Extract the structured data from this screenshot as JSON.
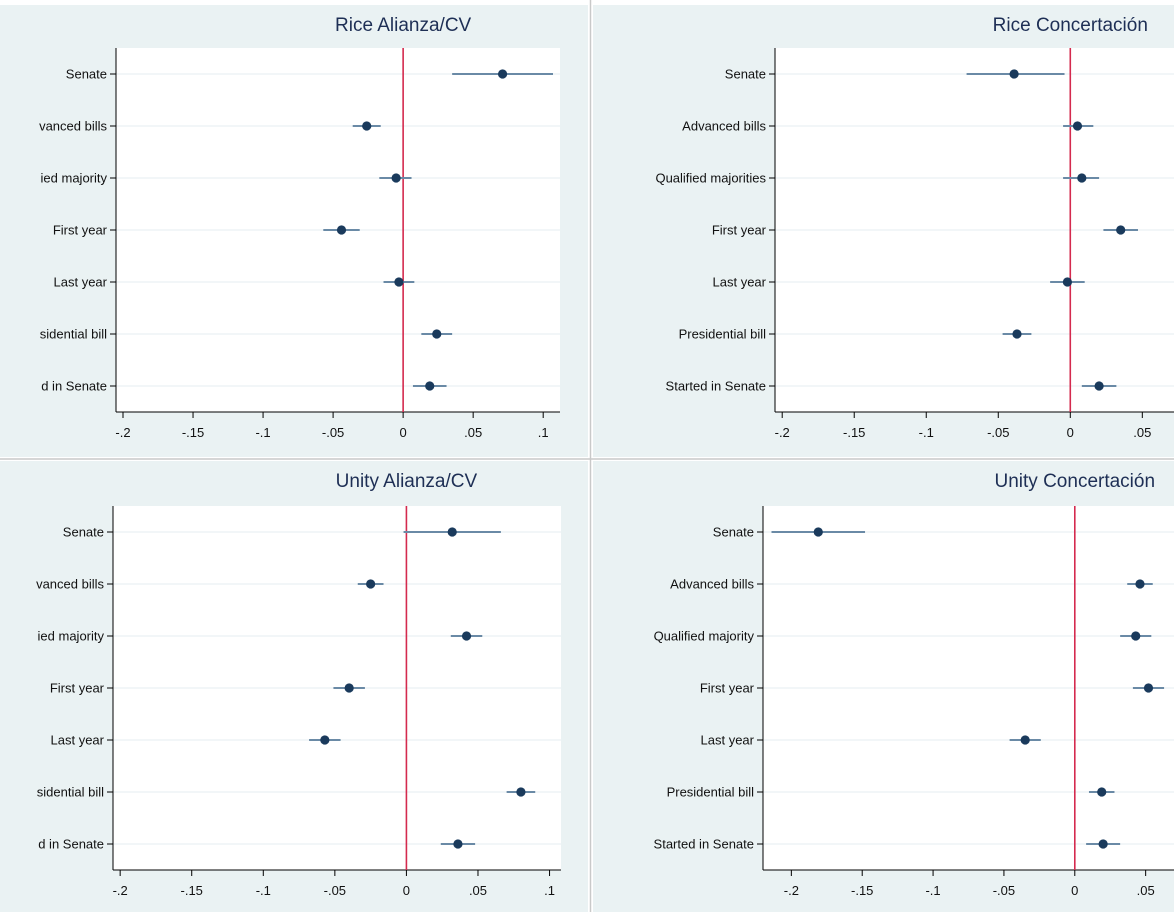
{
  "colors": {
    "point": "#1a3a5c",
    "ci": "#6a8aa6",
    "zero_line": "#d42a4e",
    "panel_bg": "#eaf2f3"
  },
  "chart_data": [
    {
      "type": "scatter",
      "title": "Rice Alianza/CV",
      "categories": [
        "Senate",
        "vanced bills",
        "ied majority",
        "First year",
        "Last year",
        "sidential bill",
        "d in Senate"
      ],
      "estimates": [
        0.071,
        -0.026,
        -0.005,
        -0.044,
        -0.003,
        0.024,
        0.019
      ],
      "ci_low": [
        0.035,
        -0.036,
        -0.017,
        -0.057,
        -0.014,
        0.013,
        0.007
      ],
      "ci_high": [
        0.107,
        -0.016,
        0.006,
        -0.031,
        0.008,
        0.035,
        0.031
      ],
      "xticks": [
        "-.2",
        "-.15",
        "-.1",
        "-.05",
        "0",
        ".05",
        ".1"
      ],
      "xtick_values": [
        -0.2,
        -0.15,
        -0.1,
        -0.05,
        0,
        0.05,
        0.1
      ],
      "xlim": [
        -0.205,
        0.112
      ],
      "reference_line": 0,
      "grid": true
    },
    {
      "type": "scatter",
      "title": "Rice Concertación",
      "categories": [
        "Senate",
        "Advanced bills",
        "Qualified majorities",
        "First year",
        "Last year",
        "Presidential bill",
        "Started in Senate"
      ],
      "estimates": [
        -0.039,
        0.005,
        0.008,
        0.035,
        -0.002,
        -0.037,
        0.02
      ],
      "ci_low": [
        -0.072,
        -0.005,
        -0.005,
        0.023,
        -0.014,
        -0.047,
        0.008
      ],
      "ci_high": [
        -0.004,
        0.016,
        0.02,
        0.047,
        0.01,
        -0.027,
        0.032
      ],
      "xticks": [
        "-.2",
        "-.15",
        "-.1",
        "-.05",
        "0",
        ".05"
      ],
      "xtick_values": [
        -0.2,
        -0.15,
        -0.1,
        -0.05,
        0,
        0.05
      ],
      "xlim": [
        -0.205,
        0.072
      ],
      "reference_line": 0,
      "grid": true
    },
    {
      "type": "scatter",
      "title": "Unity Alianza/CV",
      "categories": [
        "Senate",
        "vanced bills",
        "ied majority",
        "First year",
        "Last year",
        "sidential bill",
        "d in Senate"
      ],
      "estimates": [
        0.032,
        -0.025,
        0.042,
        -0.04,
        -0.057,
        0.08,
        0.036
      ],
      "ci_low": [
        -0.002,
        -0.034,
        0.031,
        -0.051,
        -0.068,
        0.07,
        0.024
      ],
      "ci_high": [
        0.066,
        -0.016,
        0.053,
        -0.029,
        -0.046,
        0.09,
        0.048
      ],
      "xticks": [
        "-.2",
        "-.15",
        "-.1",
        "-.05",
        "0",
        ".05",
        ".1"
      ],
      "xtick_values": [
        -0.2,
        -0.15,
        -0.1,
        -0.05,
        0,
        0.05,
        0.1
      ],
      "xlim": [
        -0.205,
        0.108
      ],
      "reference_line": 0,
      "grid": true
    },
    {
      "type": "scatter",
      "title": "Unity Concertación",
      "categories": [
        "Senate",
        "Advanced bills",
        "Qualified majority",
        "First year",
        "Last year",
        "Presidential bill",
        "Started in Senate"
      ],
      "estimates": [
        -0.181,
        0.046,
        0.043,
        0.052,
        -0.035,
        0.019,
        0.02
      ],
      "ci_low": [
        -0.214,
        0.037,
        0.032,
        0.041,
        -0.046,
        0.01,
        0.008
      ],
      "ci_high": [
        -0.148,
        0.055,
        0.054,
        0.063,
        -0.024,
        0.028,
        0.032
      ],
      "xticks": [
        "-.2",
        "-.15",
        "-.1",
        "-.05",
        "0",
        ".05"
      ],
      "xtick_values": [
        -0.2,
        -0.15,
        -0.1,
        -0.05,
        0,
        0.05
      ],
      "xlim": [
        -0.22,
        0.07
      ],
      "reference_line": 0,
      "grid": true
    }
  ]
}
